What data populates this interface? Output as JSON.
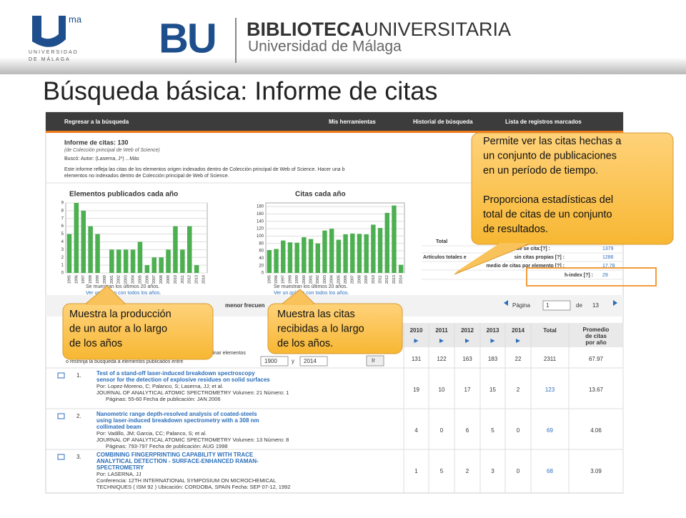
{
  "header": {
    "logo_sup": "ma",
    "university": [
      "UNIVERSIDAD",
      "DE MÁLAGA"
    ],
    "bu": "BU",
    "biblioteca": "BIBLIOTECA",
    "universitaria": "UNIVERSITARIA",
    "subtitle": "Universidad de Málaga"
  },
  "title": "Búsqueda básica: Informe de citas",
  "nav": {
    "back": "Regresar a la búsqueda",
    "items": [
      "Mis herramientas",
      "Historial de búsqueda",
      "Lista de registros marcados"
    ]
  },
  "report": {
    "heading": "Informe de citas: 130",
    "source": "(de Colección principal de Web of Science)",
    "query": "Buscó: Autor: (Laserna, J*)  ...Más",
    "description": [
      "Este informe refleja las citas de los elementos origen indexados dentro de Colección principal de Web of Science. Hacer una b",
      "elementos no indexados dentro de Colección principal de Web of Science."
    ]
  },
  "charts": [
    {
      "type": "bar",
      "title": "Elementos publicados cada año",
      "color": "#4caf50",
      "categories": [
        "1995",
        "1996",
        "1997",
        "1998",
        "1999",
        "2000",
        "2001",
        "2002",
        "2003",
        "2004",
        "2005",
        "2006",
        "2007",
        "2008",
        "2009",
        "2010",
        "2011",
        "2012",
        "2013",
        "2014"
      ],
      "values": [
        5,
        9,
        8,
        6,
        5,
        0,
        3,
        3,
        3,
        3,
        4,
        1,
        2,
        2,
        3,
        6,
        3,
        6,
        1,
        0
      ],
      "ylim": [
        0,
        9
      ],
      "yticks": [
        0,
        1,
        2,
        3,
        4,
        5,
        6,
        7,
        8,
        9
      ]
    },
    {
      "type": "bar",
      "title": "Citas cada año",
      "color": "#4caf50",
      "categories": [
        "1995",
        "1996",
        "1997",
        "1998",
        "1999",
        "2000",
        "2001",
        "2002",
        "2003",
        "2004",
        "2005",
        "2006",
        "2007",
        "2008",
        "2009",
        "2010",
        "2011",
        "2012",
        "2013",
        "2014"
      ],
      "values": [
        62,
        65,
        88,
        83,
        82,
        97,
        92,
        80,
        115,
        120,
        90,
        105,
        107,
        106,
        105,
        131,
        122,
        163,
        183,
        22
      ],
      "ylim": [
        0,
        190
      ],
      "yticks": [
        0,
        20,
        40,
        60,
        80,
        100,
        120,
        140,
        160,
        180
      ]
    }
  ],
  "chart_notes": [
    "Se muestran los últimos 20 años.",
    "Ver un gráfico con todos los años."
  ],
  "stats": [
    {
      "label": "Total",
      "value": ""
    },
    {
      "label": "de se cita:[?] :",
      "value": "1379"
    },
    {
      "label": "Artículos totales e",
      "value": ""
    },
    {
      "label": "sin citas propias [?] :",
      "value": "1286"
    },
    {
      "label": "medio de citas por elemento [?] :",
      "value": "17.78"
    },
    {
      "label": "h-index [?] :",
      "value": "29"
    }
  ],
  "toolbar": {
    "sort": "menor frecuen",
    "page_label": "Página",
    "page": "1",
    "of": "de",
    "pages": "13"
  },
  "filter": {
    "text1": "inar elementos",
    "text2": "o restrinja la búsqueda a elementos publicados entre",
    "from": "1900",
    "and": "y",
    "to": "2014",
    "go": "Ir"
  },
  "table": {
    "headers": [
      "2010",
      "2011",
      "2012",
      "2013",
      "2014",
      "Total",
      "Promedio de citas por año"
    ],
    "totals": [
      "131",
      "122",
      "163",
      "183",
      "22",
      "2311",
      "67.97"
    ]
  },
  "records": [
    {
      "num": "1.",
      "title": [
        "Test of a stand-off laser-induced breakdown spectroscopy",
        "sensor for the detection of explosive residues on solid surfaces"
      ],
      "details": [
        "Por: Lopez-Moreno, C; Palanco, S; Laserna, JJ; et al.",
        "JOURNAL OF ANALYTICAL ATOMIC SPECTROMETRY  Volumen: 21  Número: 1",
        "Páginas: 55-60   Fecha de publicación: JAN 2006"
      ],
      "values": [
        "19",
        "10",
        "17",
        "15",
        "2",
        "123",
        "13.67"
      ]
    },
    {
      "num": "2.",
      "title": [
        "Nanometric range depth-resolved analysis of coated-steels",
        "using laser-induced breakdown spectrometry with a 308 nm",
        "collimated beam"
      ],
      "details": [
        "Por: Vadillo, JM; Garcia, CC; Palanco, S; et al.",
        "JOURNAL OF ANALYTICAL ATOMIC SPECTROMETRY  Volumen: 13  Número: 8",
        "Páginas: 793-797   Fecha de publicación: AUG 1998"
      ],
      "values": [
        "4",
        "0",
        "6",
        "5",
        "0",
        "69",
        "4.06"
      ]
    },
    {
      "num": "3.",
      "title": [
        "COMBINING FINGERPRINTING CAPABILITY WITH TRACE",
        "ANALYTICAL DETECTION - SURFACE-ENHANCED RAMAN-",
        "SPECTROMETRY"
      ],
      "details": [
        "Por: LASERNA, JJ",
        "Conferencia: 12TH INTERNATIONAL SYMPOSIUM ON MICROCHEMICAL",
        "TECHNIQUES ( ISM 92 ) Ubicación: CORDOBA, SPAIN Fecha: SEP 07-12, 1992"
      ],
      "values": [
        "1",
        "5",
        "2",
        "3",
        "0",
        "68",
        "3.09"
      ]
    }
  ],
  "callouts": [
    {
      "lines": [
        "Permite ver las citas hechas a",
        "un conjunto de publicaciones",
        "en un período de tiempo.",
        "",
        "Proporciona estadísticas del",
        "total de citas de un conjunto",
        "de resultados."
      ]
    },
    {
      "lines": [
        "Muestra la producción",
        "de un autor a lo largo",
        "de los años"
      ]
    },
    {
      "lines": [
        "Muestra las citas",
        "recibidas a lo largo",
        "de los años."
      ]
    }
  ]
}
